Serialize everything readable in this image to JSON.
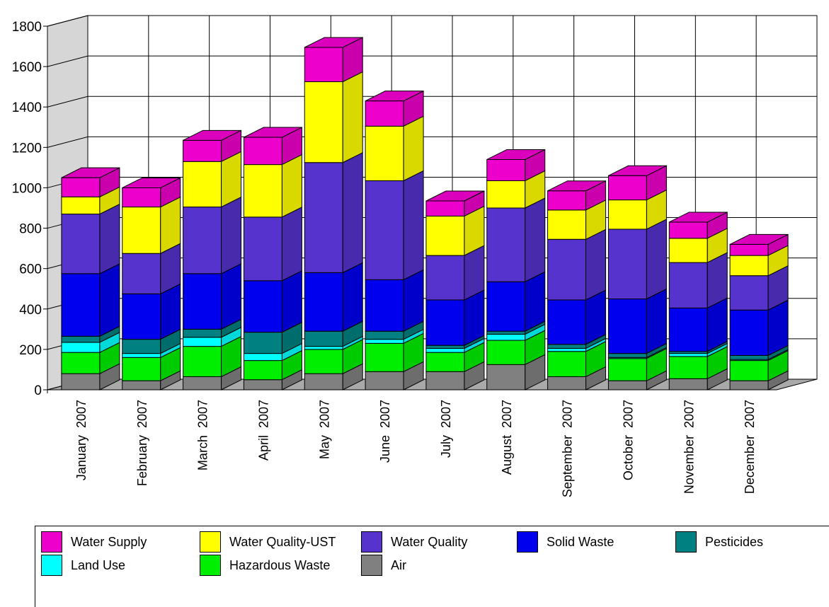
{
  "chart_data": {
    "type": "bar",
    "stacked": true,
    "three_d": true,
    "title": "",
    "xlabel": "",
    "ylabel": "",
    "ylim": [
      0,
      1800
    ],
    "yticks": [
      0,
      200,
      400,
      600,
      800,
      1000,
      1200,
      1400,
      1600,
      1800
    ],
    "grid": true,
    "legend_position": "bottom",
    "categories": [
      "January  2007",
      "February  2007",
      "March  2007",
      "April  2007",
      "May  2007",
      "June  2007",
      "July  2007",
      "August  2007",
      "September  2007",
      "October  2007",
      "November  2007",
      "December  2007"
    ],
    "series": [
      {
        "name": "Air",
        "color": "#808080",
        "values": [
          80,
          45,
          65,
          50,
          80,
          90,
          90,
          125,
          65,
          45,
          55,
          45
        ]
      },
      {
        "name": "Hazardous Waste",
        "color": "#00ee00",
        "values": [
          105,
          115,
          150,
          95,
          120,
          140,
          95,
          120,
          125,
          110,
          110,
          100
        ]
      },
      {
        "name": "Land Use",
        "color": "#00ffff",
        "values": [
          50,
          20,
          45,
          35,
          15,
          20,
          20,
          30,
          15,
          5,
          15,
          5
        ]
      },
      {
        "name": "Pesticides",
        "color": "#008080",
        "values": [
          30,
          70,
          40,
          105,
          75,
          40,
          15,
          15,
          20,
          20,
          10,
          20
        ]
      },
      {
        "name": "Solid Waste",
        "color": "#0000ee",
        "values": [
          310,
          225,
          275,
          255,
          290,
          255,
          225,
          245,
          220,
          270,
          215,
          225
        ]
      },
      {
        "name": "Water Quality",
        "color": "#5533cc",
        "values": [
          295,
          200,
          330,
          315,
          545,
          490,
          220,
          365,
          300,
          345,
          225,
          170
        ]
      },
      {
        "name": "Water Quality-UST",
        "color": "#ffff00",
        "values": [
          85,
          230,
          225,
          260,
          400,
          270,
          195,
          135,
          145,
          145,
          120,
          100
        ]
      },
      {
        "name": "Water Supply",
        "color": "#ee00cc",
        "values": [
          95,
          95,
          105,
          135,
          170,
          125,
          75,
          105,
          95,
          120,
          80,
          55
        ]
      }
    ]
  },
  "legend": {
    "items": [
      {
        "label": "Water Supply",
        "color": "#ee00cc"
      },
      {
        "label": "Water Quality-UST",
        "color": "#ffff00"
      },
      {
        "label": "Water Quality",
        "color": "#5533cc"
      },
      {
        "label": "Solid Waste",
        "color": "#0000ee"
      },
      {
        "label": "Pesticides",
        "color": "#008080"
      },
      {
        "label": "Land Use",
        "color": "#00ffff"
      },
      {
        "label": "Hazardous Waste",
        "color": "#00ee00"
      },
      {
        "label": "Air",
        "color": "#808080"
      }
    ]
  }
}
